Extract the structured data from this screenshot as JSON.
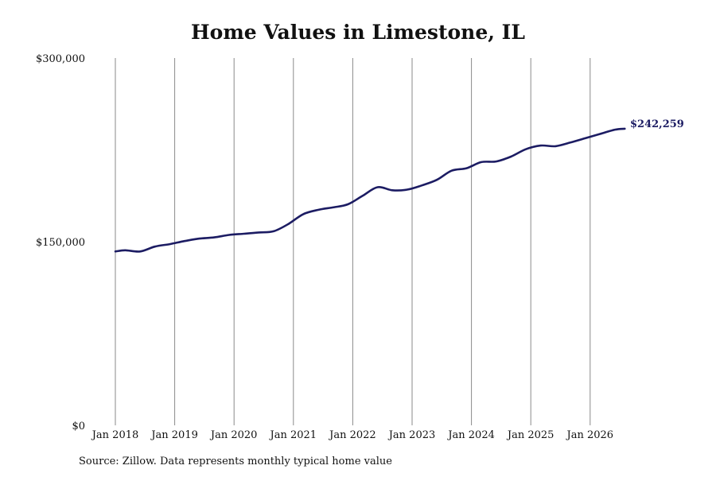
{
  "page": {
    "title": "Home Values in Limestone, IL",
    "source": "Source: Zillow. Data represents monthly typical home value"
  },
  "chart_data": {
    "type": "line",
    "title": "Home Values in Limestone, IL",
    "xlabel": "",
    "ylabel": "",
    "ylim": [
      0,
      300000
    ],
    "y_ticks": [
      0,
      150000,
      300000
    ],
    "y_tick_labels": [
      "$0",
      "$150,000",
      "$300,000"
    ],
    "x_ticks": [
      "2018-01",
      "2019-01",
      "2020-01",
      "2021-01",
      "2022-01",
      "2023-01",
      "2024-01",
      "2025-01",
      "2026-01"
    ],
    "x_tick_labels": [
      "Jan 2018",
      "Jan 2019",
      "Jan 2020",
      "Jan 2021",
      "Jan 2022",
      "Jan 2023",
      "Jan 2024",
      "Jan 2025",
      "Jan 2026"
    ],
    "grid": "vertical",
    "line_color": "#1c1c63",
    "end_label": "$242,259",
    "series": [
      {
        "x": [
          "2018-01",
          "2018-03",
          "2018-06",
          "2018-09",
          "2018-12",
          "2019-03",
          "2019-06",
          "2019-09",
          "2019-12",
          "2020-03",
          "2020-06",
          "2020-09",
          "2020-12",
          "2021-03",
          "2021-06",
          "2021-09",
          "2021-12",
          "2022-03",
          "2022-06",
          "2022-09",
          "2022-12",
          "2023-03",
          "2023-06",
          "2023-09",
          "2023-12",
          "2024-03",
          "2024-06",
          "2024-09",
          "2024-12",
          "2025-03",
          "2025-06",
          "2025-09",
          "2025-12",
          "2026-03",
          "2026-06",
          "2026-08"
        ],
        "values": [
          142000,
          143000,
          142000,
          146000,
          148000,
          150500,
          152500,
          153500,
          155500,
          156500,
          157500,
          158500,
          164500,
          172500,
          176000,
          178000,
          180500,
          187500,
          194500,
          192000,
          192500,
          196000,
          200500,
          208000,
          210000,
          215000,
          215500,
          219500,
          225500,
          228500,
          228000,
          231000,
          234500,
          238000,
          241500,
          242259
        ]
      }
    ]
  }
}
